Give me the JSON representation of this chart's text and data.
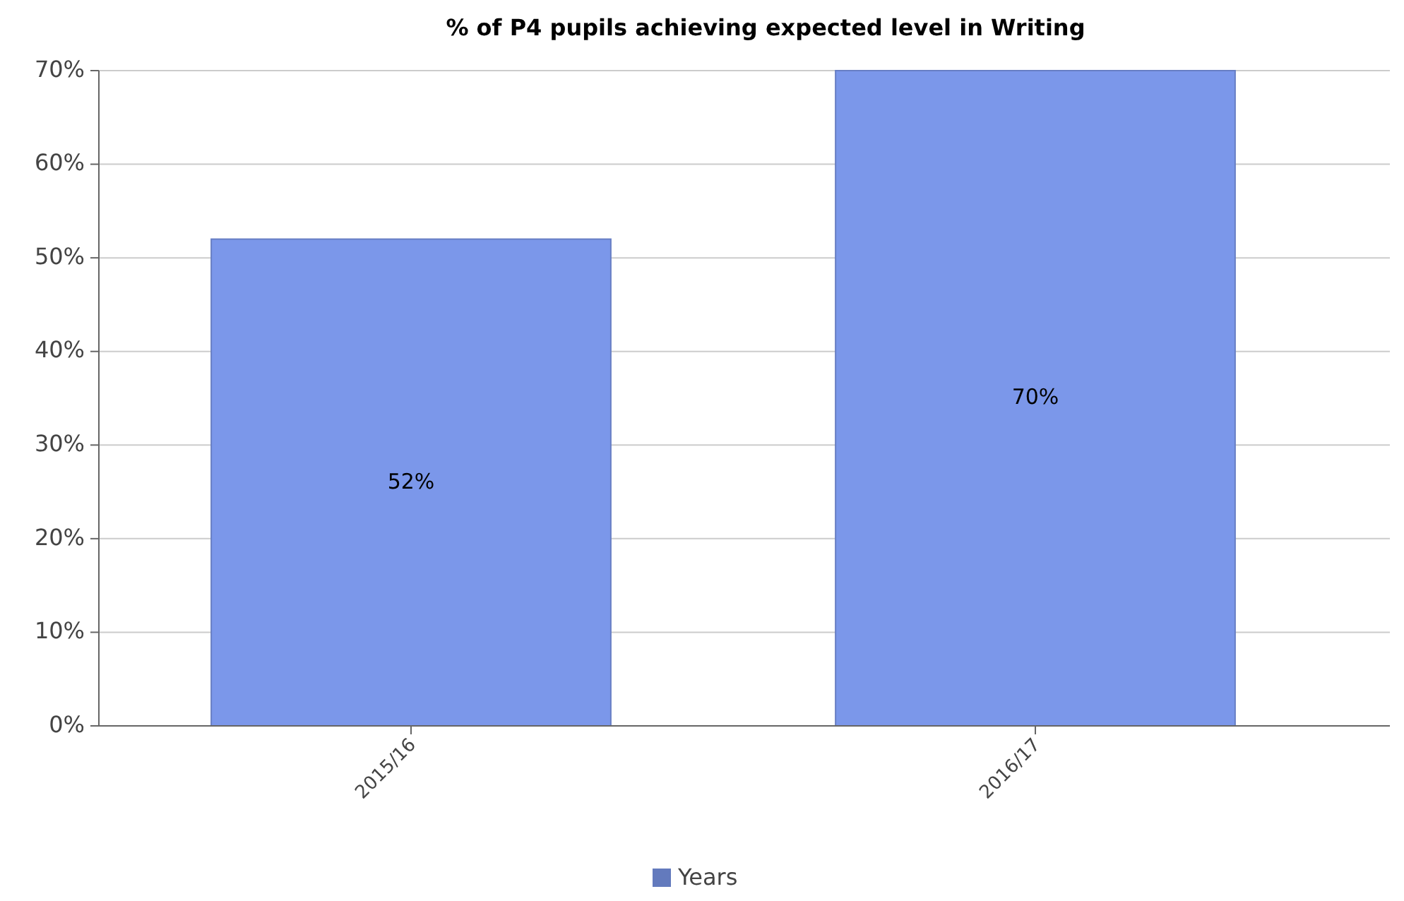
{
  "chart_data": {
    "type": "bar",
    "title": "% of P4 pupils achieving expected level in Writing",
    "categories": [
      "2015/16",
      "2016/17"
    ],
    "series": [
      {
        "name": "Years",
        "color": "#7b97ea",
        "values": [
          52,
          70
        ],
        "value_labels": [
          "52%",
          "70%"
        ]
      }
    ],
    "ylim": [
      0,
      70
    ],
    "yticks": [
      {
        "value": 0,
        "label": "0%"
      },
      {
        "value": 10,
        "label": "10%"
      },
      {
        "value": 20,
        "label": "20%"
      },
      {
        "value": 30,
        "label": "30%"
      },
      {
        "value": 40,
        "label": "40%"
      },
      {
        "value": 50,
        "label": "50%"
      },
      {
        "value": 60,
        "label": "60%"
      },
      {
        "value": 70,
        "label": "70%"
      }
    ],
    "grid": "y",
    "legend": "bottom"
  }
}
